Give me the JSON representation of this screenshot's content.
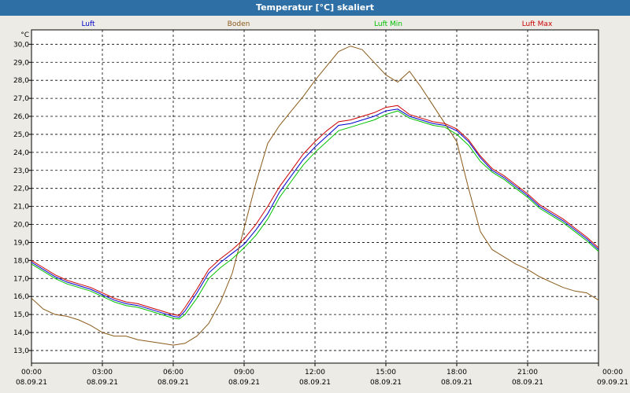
{
  "window": {
    "title": "Temperatur [°C] skaliert"
  },
  "chart_data": {
    "type": "line",
    "title": "Temperatur [°C] skaliert",
    "ylabel": "°C",
    "ylim": [
      12.3,
      30.8
    ],
    "yticks": [
      13.0,
      14.0,
      15.0,
      16.0,
      17.0,
      18.0,
      19.0,
      20.0,
      21.0,
      22.0,
      23.0,
      24.0,
      25.0,
      26.0,
      27.0,
      28.0,
      29.0,
      30.0
    ],
    "ytick_labels": [
      "13,0",
      "14,0",
      "15,0",
      "16,0",
      "17,0",
      "18,0",
      "19,0",
      "20,0",
      "21,0",
      "22,0",
      "23,0",
      "24,0",
      "25,0",
      "26,0",
      "27,0",
      "28,0",
      "29,0",
      "30,0"
    ],
    "xlim": [
      0,
      24
    ],
    "xticks": [
      0,
      3,
      6,
      9,
      12,
      15,
      18,
      21,
      24
    ],
    "xtick_times": [
      "00:00",
      "03:00",
      "06:00",
      "09:00",
      "12:00",
      "15:00",
      "18:00",
      "21:00",
      "00:00"
    ],
    "xtick_dates": [
      "08.09.21",
      "08.09.21",
      "08.09.21",
      "08.09.21",
      "08.09.21",
      "08.09.21",
      "08.09.21",
      "08.09.21",
      "09.09.21"
    ],
    "grid": true,
    "legend_position": "top",
    "series": [
      {
        "name": "Luft",
        "color": "#0000cc",
        "x": [
          0,
          0.5,
          1,
          1.5,
          2,
          2.5,
          3,
          3.5,
          4,
          4.5,
          5,
          5.5,
          6,
          6.25,
          6.5,
          7,
          7.5,
          8,
          8.5,
          9,
          9.5,
          10,
          10.5,
          11,
          11.5,
          12,
          12.5,
          13,
          13.5,
          14,
          14.5,
          15,
          15.5,
          16,
          16.5,
          17,
          17.5,
          18,
          18.5,
          19,
          19.5,
          20,
          20.5,
          21,
          21.5,
          22,
          22.5,
          23,
          23.5,
          24
        ],
        "y": [
          17.9,
          17.5,
          17.1,
          16.8,
          16.6,
          16.4,
          16.1,
          15.8,
          15.6,
          15.5,
          15.3,
          15.1,
          14.9,
          14.85,
          15.2,
          16.2,
          17.3,
          17.9,
          18.4,
          18.9,
          19.7,
          20.6,
          21.8,
          22.7,
          23.6,
          24.3,
          24.9,
          25.5,
          25.6,
          25.8,
          26.0,
          26.3,
          26.4,
          26.0,
          25.8,
          25.6,
          25.5,
          25.2,
          24.6,
          23.7,
          23.0,
          22.6,
          22.1,
          21.6,
          21.0,
          20.6,
          20.2,
          19.7,
          19.2,
          18.6
        ]
      },
      {
        "name": "Boden",
        "color": "#8b5a1a",
        "x": [
          0,
          0.5,
          1,
          1.5,
          2,
          2.5,
          3,
          3.5,
          4,
          4.5,
          5,
          5.5,
          6,
          6.5,
          7,
          7.5,
          8,
          8.5,
          9,
          9.5,
          10,
          10.5,
          11,
          11.5,
          12,
          12.5,
          13,
          13.5,
          14,
          14.5,
          15,
          15.5,
          16,
          16.5,
          17,
          17.5,
          18,
          18.5,
          19,
          19.5,
          20,
          20.5,
          21,
          21.5,
          22,
          22.5,
          23,
          23.5,
          24
        ],
        "y": [
          15.9,
          15.3,
          15.0,
          14.9,
          14.7,
          14.4,
          14.0,
          13.8,
          13.8,
          13.6,
          13.5,
          13.4,
          13.3,
          13.4,
          13.8,
          14.5,
          15.7,
          17.3,
          19.8,
          22.3,
          24.5,
          25.5,
          26.3,
          27.1,
          28.0,
          28.8,
          29.6,
          29.9,
          29.7,
          29.0,
          28.3,
          27.9,
          28.5,
          27.6,
          26.6,
          25.6,
          24.6,
          22.0,
          19.6,
          18.6,
          18.2,
          17.8,
          17.5,
          17.1,
          16.8,
          16.5,
          16.3,
          16.2,
          15.8
        ]
      },
      {
        "name": "Luft Min",
        "color": "#00c000",
        "x": [
          0,
          0.5,
          1,
          1.5,
          2,
          2.5,
          3,
          3.5,
          4,
          4.5,
          5,
          5.5,
          6,
          6.25,
          6.5,
          7,
          7.5,
          8,
          8.5,
          9,
          9.5,
          10,
          10.5,
          11,
          11.5,
          12,
          12.5,
          13,
          13.5,
          14,
          14.5,
          15,
          15.5,
          16,
          16.5,
          17,
          17.5,
          18,
          18.5,
          19,
          19.5,
          20,
          20.5,
          21,
          21.5,
          22,
          22.5,
          23,
          23.5,
          24
        ],
        "y": [
          17.8,
          17.4,
          17.0,
          16.7,
          16.5,
          16.3,
          16.0,
          15.7,
          15.5,
          15.4,
          15.2,
          15.0,
          14.8,
          14.75,
          15.0,
          15.9,
          17.0,
          17.6,
          18.1,
          18.7,
          19.4,
          20.3,
          21.5,
          22.4,
          23.3,
          24.0,
          24.6,
          25.2,
          25.4,
          25.6,
          25.8,
          26.1,
          26.3,
          25.9,
          25.7,
          25.5,
          25.4,
          25.0,
          24.4,
          23.5,
          22.9,
          22.5,
          22.0,
          21.5,
          20.9,
          20.5,
          20.1,
          19.6,
          19.1,
          18.5
        ]
      },
      {
        "name": "Luft Max",
        "color": "#cc0000",
        "x": [
          0,
          0.5,
          1,
          1.5,
          2,
          2.5,
          3,
          3.5,
          4,
          4.5,
          5,
          5.5,
          6,
          6.25,
          6.5,
          7,
          7.5,
          8,
          8.5,
          9,
          9.5,
          10,
          10.5,
          11,
          11.5,
          12,
          12.5,
          13,
          13.5,
          14,
          14.5,
          15,
          15.5,
          16,
          16.5,
          17,
          17.5,
          18,
          18.5,
          19,
          19.5,
          20,
          20.5,
          21,
          21.5,
          22,
          22.5,
          23,
          23.5,
          24
        ],
        "y": [
          18.0,
          17.6,
          17.2,
          16.9,
          16.7,
          16.5,
          16.2,
          15.9,
          15.7,
          15.6,
          15.4,
          15.2,
          15.0,
          14.95,
          15.4,
          16.4,
          17.5,
          18.1,
          18.6,
          19.2,
          20.0,
          21.0,
          22.1,
          23.0,
          23.9,
          24.6,
          25.2,
          25.7,
          25.8,
          26.0,
          26.2,
          26.5,
          26.6,
          26.1,
          25.9,
          25.7,
          25.6,
          25.3,
          24.7,
          23.8,
          23.1,
          22.7,
          22.2,
          21.7,
          21.1,
          20.7,
          20.3,
          19.8,
          19.3,
          18.7
        ]
      }
    ]
  }
}
